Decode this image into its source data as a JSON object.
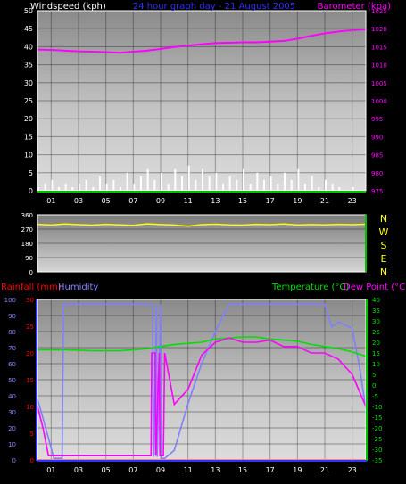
{
  "colors": {
    "wind": "#ffffff",
    "baro": "#ff00ff",
    "winddir": "#ffff00",
    "rain": "#ff0000",
    "humidity": "#8080ff",
    "temp": "#00e000",
    "dew": "#ff00ff",
    "frame_green": "#00c000",
    "frame_blue": "#3030ff",
    "tick_text": "#ffffff"
  },
  "chart_data": [
    {
      "type": "line",
      "title": "24 hour graph day - 21 August 2005",
      "left_axis_label": "Windspeed (kph)",
      "right_axis_label": "Barometer (kpa)",
      "hour_labels": [
        "01",
        "03",
        "05",
        "07",
        "09",
        "11",
        "13",
        "15",
        "17",
        "19",
        "21",
        "23"
      ],
      "left_ticks": [
        "0",
        "5",
        "10",
        "15",
        "20",
        "25",
        "30",
        "35",
        "40",
        "45",
        "50"
      ],
      "right_ticks": [
        "975",
        "980",
        "985",
        "990",
        "995",
        "1000",
        "1005",
        "1010",
        "1015",
        "1020",
        "1025"
      ],
      "left_range": [
        0,
        50
      ],
      "right_range": [
        975,
        1025
      ],
      "series": [
        {
          "name": "Windspeed",
          "x": [
            0,
            0.5,
            1,
            1.5,
            2,
            2.5,
            3,
            3.5,
            4,
            4.5,
            5,
            5.5,
            6,
            6.5,
            7,
            7.5,
            8,
            8.5,
            9,
            9.5,
            10,
            10.5,
            11,
            11.5,
            12,
            12.5,
            13,
            13.5,
            14,
            14.5,
            15,
            15.5,
            16,
            16.5,
            17,
            17.5,
            18,
            18.5,
            19,
            19.5,
            20,
            20.5,
            21,
            21.5,
            22,
            22.5,
            23,
            23.5
          ],
          "values": [
            1,
            2,
            3,
            1,
            2,
            1,
            2,
            3,
            1,
            4,
            2,
            3,
            1,
            5,
            2,
            4,
            6,
            3,
            5,
            2,
            6,
            4,
            7,
            3,
            6,
            4,
            5,
            2,
            4,
            3,
            6,
            2,
            5,
            3,
            4,
            2,
            5,
            3,
            6,
            2,
            4,
            1,
            3,
            2,
            1,
            0,
            1,
            0
          ]
        },
        {
          "name": "Barometer",
          "x": [
            0,
            1,
            2,
            3,
            4,
            5,
            6,
            7,
            8,
            9,
            10,
            11,
            12,
            13,
            14,
            15,
            16,
            17,
            18,
            19,
            20,
            21,
            22,
            23,
            24
          ],
          "values": [
            1014.2,
            1014.1,
            1013.9,
            1013.7,
            1013.6,
            1013.5,
            1013.3,
            1013.6,
            1013.9,
            1014.4,
            1014.9,
            1015.3,
            1015.7,
            1016.0,
            1016.1,
            1016.2,
            1016.2,
            1016.4,
            1016.6,
            1017.2,
            1018.0,
            1018.7,
            1019.2,
            1019.6,
            1019.8
          ]
        }
      ]
    },
    {
      "type": "line",
      "left_ticks": [
        "0",
        "90",
        "180",
        "270",
        "360"
      ],
      "left_range": [
        0,
        360
      ],
      "direction_labels": [
        "N",
        "W",
        "S",
        "E",
        "N"
      ],
      "series": [
        {
          "name": "Wind Direction",
          "x": [
            0,
            1,
            2,
            3,
            4,
            5,
            6,
            7,
            8,
            9,
            10,
            11,
            12,
            13,
            14,
            15,
            16,
            17,
            18,
            19,
            20,
            21,
            22,
            23,
            24
          ],
          "values": [
            300,
            296,
            302,
            298,
            295,
            300,
            297,
            294,
            303,
            299,
            296,
            288,
            298,
            301,
            297,
            295,
            300,
            298,
            302,
            296,
            299,
            297,
            300,
            298,
            301
          ]
        }
      ]
    },
    {
      "type": "line",
      "labels": [
        "Rainfall (mm)",
        "Humidity",
        "Temperature (°C)",
        "Dew Point (°C)"
      ],
      "hour_labels": [
        "01",
        "03",
        "05",
        "07",
        "09",
        "11",
        "13",
        "15",
        "17",
        "19",
        "21",
        "23"
      ],
      "humidity_ticks": [
        "0",
        "10",
        "20",
        "30",
        "40",
        "50",
        "60",
        "70",
        "80",
        "90",
        "100"
      ],
      "rain_ticks": [
        "0",
        "5",
        "10",
        "15",
        "20",
        "25",
        "30"
      ],
      "temp_ticks": [
        "-35",
        "-30",
        "-25",
        "-20",
        "-15",
        "-10",
        "-5",
        "0",
        "5",
        "10",
        "15",
        "20",
        "25",
        "30",
        "35",
        "40"
      ],
      "humidity_range": [
        0,
        100
      ],
      "rain_range": [
        0,
        30
      ],
      "temp_range": [
        -35,
        40
      ],
      "series": [
        {
          "name": "Humidity",
          "x": [
            0,
            0.6,
            1.2,
            1.8,
            1.9,
            7,
            8.4,
            8.5,
            8.7,
            8.75,
            9.0,
            9.05,
            9.2,
            9.3,
            10,
            11,
            12,
            13,
            14,
            14.5,
            21,
            21.5,
            22,
            23,
            23.5,
            24
          ],
          "values": [
            38,
            20,
            1,
            1,
            97,
            97,
            97,
            2,
            97,
            2,
            97,
            1,
            1,
            1,
            6,
            35,
            60,
            80,
            97,
            97,
            97,
            83,
            86,
            82,
            60,
            32
          ],
          "axis": "humidity"
        },
        {
          "name": "Rainfall",
          "x": [
            0,
            24
          ],
          "values": [
            0,
            0
          ],
          "axis": "rain"
        },
        {
          "name": "Temperature",
          "x": [
            0,
            2,
            4,
            6,
            7,
            8,
            8.5,
            9,
            10,
            11,
            12,
            13,
            14,
            15,
            16,
            17,
            18,
            19,
            20,
            21,
            22,
            23,
            24
          ],
          "values": [
            16.5,
            16.5,
            16.0,
            16.0,
            16.5,
            17.0,
            17.5,
            18.0,
            19.0,
            19.5,
            20.0,
            21.5,
            22.0,
            22.5,
            22.5,
            21.5,
            21.0,
            20.5,
            19.0,
            18.0,
            17.0,
            15.5,
            13.5
          ],
          "axis": "temp"
        },
        {
          "name": "Dew Point",
          "x": [
            0,
            0.4,
            0.8,
            1.0,
            8.3,
            8.35,
            8.6,
            8.65,
            8.9,
            8.95,
            9.2,
            9.3,
            10,
            11,
            12,
            13,
            14,
            15,
            16,
            17,
            18,
            19,
            20,
            21,
            22,
            23,
            24
          ],
          "values": [
            -10,
            -20,
            -33,
            -33,
            -33,
            15,
            15,
            -33,
            15,
            -33,
            -33,
            15,
            -9,
            -2,
            14,
            20,
            22,
            20,
            20,
            21,
            18,
            18,
            15,
            15,
            12,
            5,
            -10
          ],
          "axis": "temp"
        }
      ]
    }
  ]
}
